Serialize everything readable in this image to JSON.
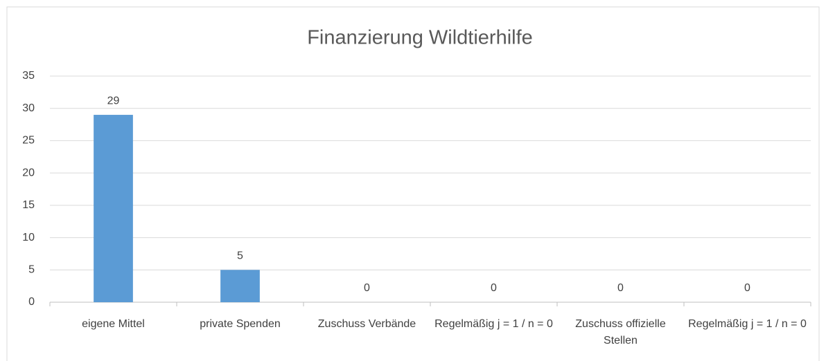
{
  "chart_data": {
    "type": "bar",
    "title": "Finanzierung Wildtierhilfe",
    "categories": [
      "eigene Mittel",
      "private Spenden",
      "Zuschuss Verbände",
      "Regelmäßig j = 1 / n = 0",
      "Zuschuss offizielle Stellen",
      "Regelmäßig j = 1 / n = 0"
    ],
    "values": [
      29,
      5,
      0,
      0,
      0,
      0
    ],
    "color": "#5b9bd5",
    "ylim": [
      0,
      35
    ],
    "yticks": [
      0,
      5,
      10,
      15,
      20,
      25,
      30,
      35
    ],
    "grid": true
  }
}
